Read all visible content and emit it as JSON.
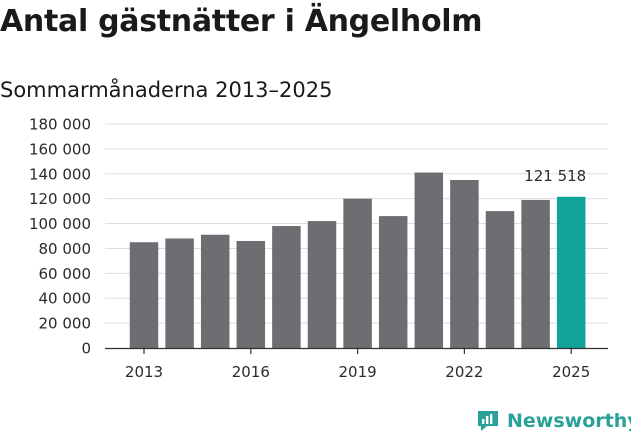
{
  "title": "Antal gästnätter i Ängelholm",
  "subtitle": "Sommarmånaderna 2013–2025",
  "brand": {
    "name": "Newsworthy",
    "icon": "newsworthy-logo-icon",
    "color": "#2aa198"
  },
  "colors": {
    "bar": "#6e6d72",
    "highlight": "#0fa39a",
    "grid": "#dddddd",
    "axis": "#333333"
  },
  "chart_data": {
    "type": "bar",
    "x": [
      2013,
      2014,
      2015,
      2016,
      2017,
      2018,
      2019,
      2020,
      2021,
      2022,
      2023,
      2024,
      2025
    ],
    "values": [
      85000,
      88000,
      91000,
      86000,
      98000,
      102000,
      120000,
      106000,
      141000,
      135000,
      110000,
      119000,
      121518
    ],
    "highlight_index": 12,
    "highlight_label": "121 518",
    "ylim": [
      0,
      180000
    ],
    "yticks": [
      0,
      20000,
      40000,
      60000,
      80000,
      100000,
      120000,
      140000,
      160000,
      180000
    ],
    "ytick_labels": [
      "0",
      "20 000",
      "40 000",
      "60 000",
      "80 000",
      "100 000",
      "120 000",
      "140 000",
      "160 000",
      "180 000"
    ],
    "xticks": [
      2013,
      2016,
      2019,
      2022,
      2025
    ],
    "xtick_labels": [
      "2013",
      "2016",
      "2019",
      "2022",
      "2025"
    ],
    "grid": true,
    "xlabel": "",
    "ylabel": ""
  }
}
